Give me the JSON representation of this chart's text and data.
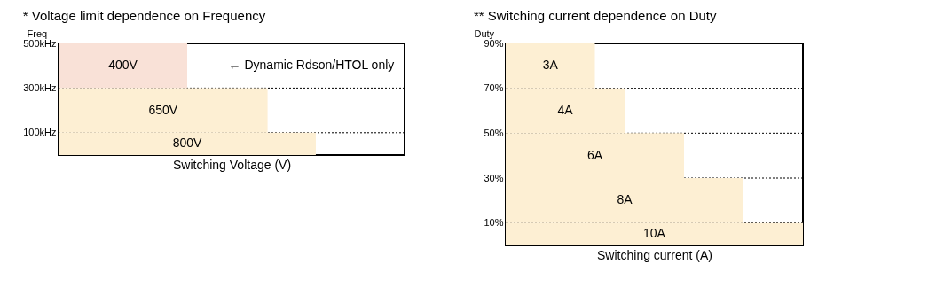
{
  "chart_data": [
    {
      "type": "bar",
      "orientation": "horizontal",
      "tick_labels": "y",
      "title": "* Voltage limit dependence on Frequency",
      "ylabel": "Freq",
      "xlabel": "Switching Voltage (V)",
      "categories": [
        "500kHz",
        "300kHz",
        "100kHz"
      ],
      "values": [
        400,
        650,
        800
      ],
      "value_labels": [
        "400V",
        "650V",
        "800V"
      ],
      "colors": [
        "#f9e1d7",
        "#fdefd3",
        "#fdefd3"
      ],
      "grid": true,
      "annotations": [
        "← Dynamic Rdson/HTOL only"
      ]
    },
    {
      "type": "bar",
      "orientation": "horizontal",
      "tick_labels": "y",
      "title": "** Switching current dependence on Duty",
      "ylabel": "Duty",
      "xlabel": "Switching current (A)",
      "categories": [
        "90%",
        "70%",
        "50%",
        "30%",
        "10%"
      ],
      "values": [
        3,
        4,
        6,
        8,
        10
      ],
      "value_labels": [
        "3A",
        "4A",
        "6A",
        "8A",
        "10A"
      ],
      "colors": [
        "#fdefd3",
        "#fdefd3",
        "#fdefd3",
        "#fdefd3",
        "#fdefd3"
      ],
      "grid": true
    }
  ]
}
